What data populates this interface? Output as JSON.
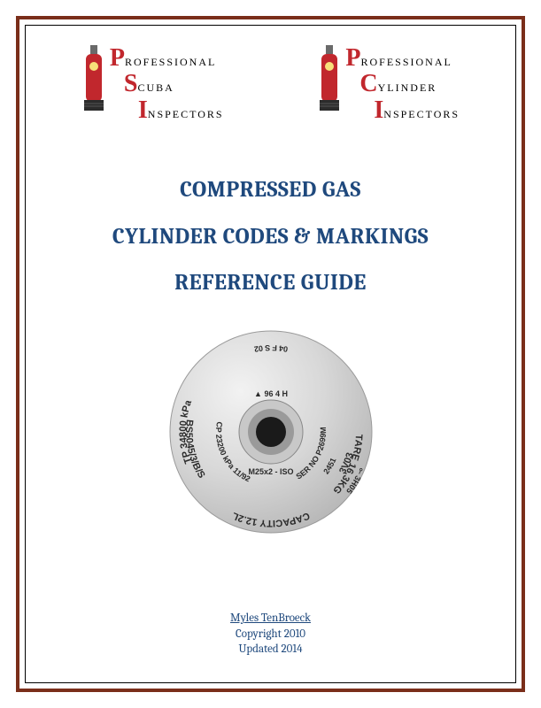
{
  "logos": {
    "left": {
      "p_first": "P",
      "p_rest": "ROFESSIONAL",
      "s_first": "S",
      "s_rest": "CUBA",
      "i_first": "I",
      "i_rest": "NSPECTORS"
    },
    "right": {
      "p_first": "P",
      "p_rest": "ROFESSIONAL",
      "c_first": "C",
      "c_rest": "YLINDER",
      "i_first": "I",
      "i_rest": "NSPECTORS"
    },
    "tank_body_color": "#c1272d",
    "tank_base_color": "#2b2b2b",
    "tank_valve_color": "#6a6a6a"
  },
  "title": {
    "line1": "COMPRESSED GAS",
    "line2": "CYLINDER CODES & MARKINGS",
    "line3": "REFERENCE GUIDE",
    "color": "#1f497d",
    "fontsize": 25
  },
  "cylinder_markings": {
    "diameter": 238,
    "outer_fill": "#d8d8d8",
    "outer_highlight": "#f2f2f2",
    "outer_shadow": "#b8b8b8",
    "hub_outer": "#c8c8c8",
    "hub_inner": "#1a1a1a",
    "hub_ring": "#9a9a9a",
    "text_color": "#2b2b2b",
    "fontsize_main": 11,
    "fontsize_small": 9,
    "arc_top": "04 F S 02",
    "arc_upper_left": "BS5045/3/B/S",
    "arc_upper_right": "3V03",
    "mid_left": "CP 23200 kPa 11/92",
    "mid_right": "SER NO P2699M",
    "mid_right2": "2451",
    "mid_center_top": "96 4 H",
    "mid_center_bottom": "M25x2 - ISO",
    "arc_lower_left": "TP 34800 kPa",
    "arc_lower_center": "CAPACITY 12.2L",
    "arc_lower_right": "TARE 16.3KG",
    "stamp_right": "3H05"
  },
  "footer": {
    "author": "Myles TenBroeck",
    "copyright": "Copyright 2010",
    "updated": "Updated 2014",
    "color": "#1f497d"
  },
  "border": {
    "outer_color": "#7a2e1a",
    "outer_width": 4,
    "inner_color": "#000000",
    "inner_width": 1
  }
}
